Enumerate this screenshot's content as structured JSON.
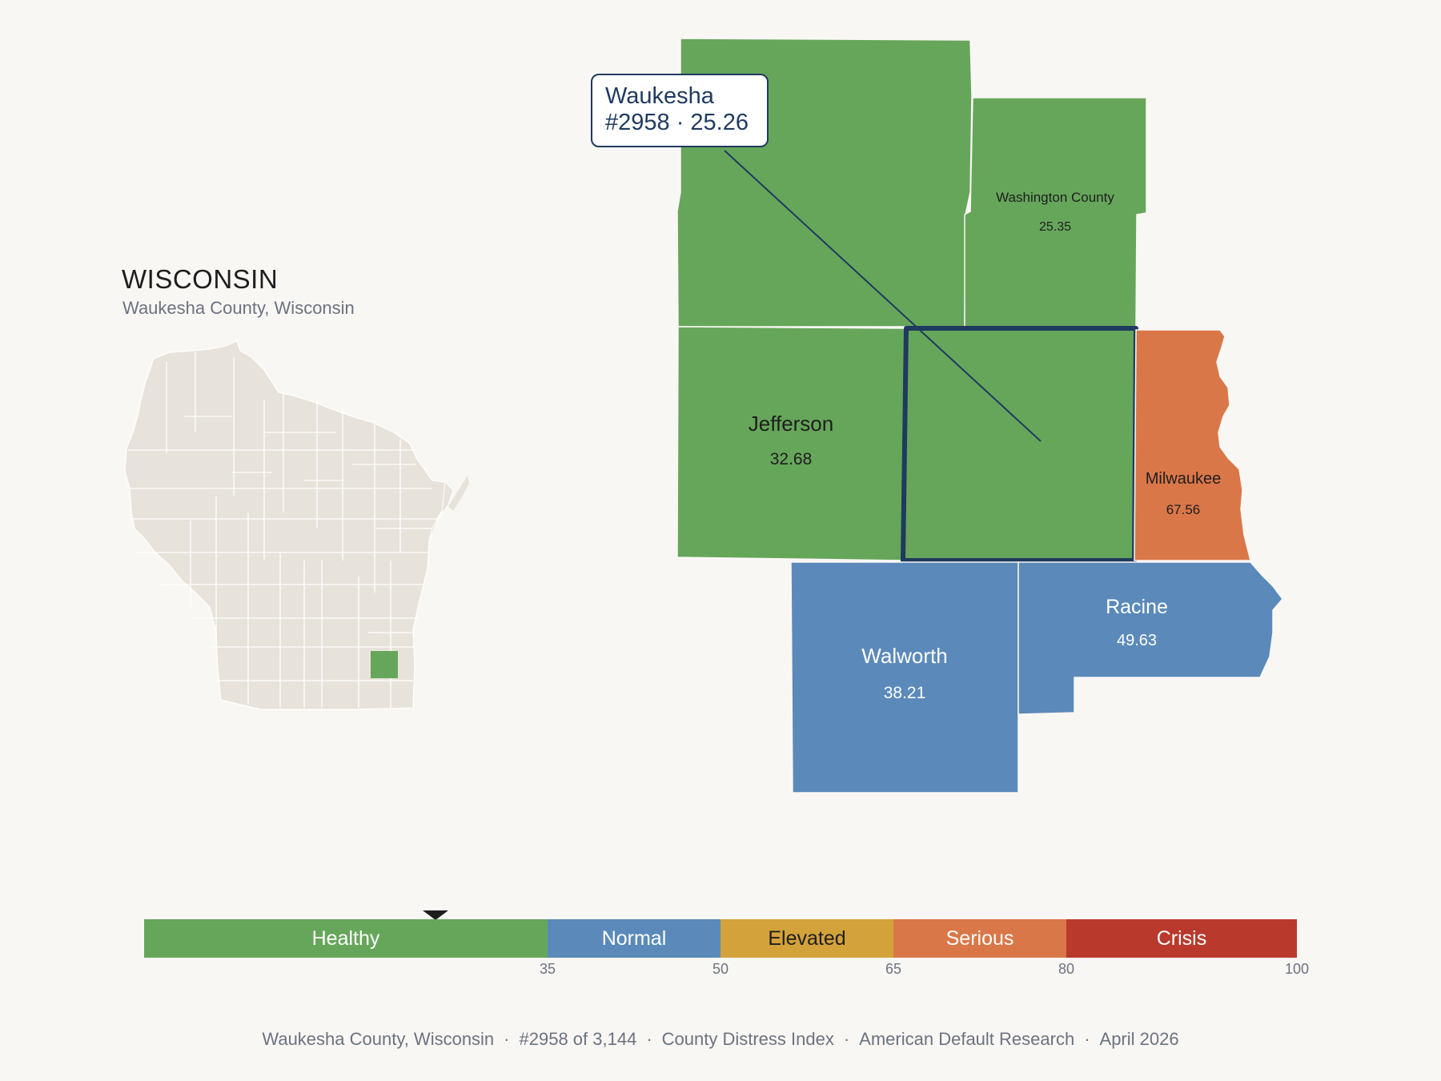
{
  "inset": {
    "title": "WISCONSIN",
    "subtitle": "Waukesha County, Wisconsin"
  },
  "colors": {
    "healthy": "#66a65a",
    "normal": "#5b8aba",
    "elevated": "#d4a23a",
    "serious": "#da7748",
    "crisis": "#b93a2c",
    "state_fill": "#e8e3da",
    "highlight_border": "#1f3a5f"
  },
  "counties": {
    "washington": {
      "name": "Washington County",
      "value": "25.35",
      "category": "healthy"
    },
    "jefferson": {
      "name": "Jefferson",
      "value": "32.68",
      "category": "healthy"
    },
    "milwaukee": {
      "name": "Milwaukee",
      "value": "67.56",
      "category": "serious"
    },
    "racine": {
      "name": "Racine",
      "value": "49.63",
      "category": "normal"
    },
    "walworth": {
      "name": "Walworth",
      "value": "38.21",
      "category": "normal"
    }
  },
  "focus": {
    "name": "Waukesha",
    "detail": "#2958 · 25.26",
    "category": "healthy"
  },
  "legend": {
    "segments": [
      {
        "label": "Healthy",
        "from": 0,
        "to": 35,
        "color": "#66a65a",
        "text_color": "#ffffff"
      },
      {
        "label": "Normal",
        "from": 35,
        "to": 50,
        "color": "#5b8aba",
        "text_color": "#ffffff"
      },
      {
        "label": "Elevated",
        "from": 50,
        "to": 65,
        "color": "#d4a23a",
        "text_color": "#1e1e1e"
      },
      {
        "label": "Serious",
        "from": 65,
        "to": 80,
        "color": "#da7748",
        "text_color": "#ffffff"
      },
      {
        "label": "Crisis",
        "from": 80,
        "to": 100,
        "color": "#b93a2c",
        "text_color": "#ffffff"
      }
    ],
    "ticks": [
      "35",
      "50",
      "65",
      "80",
      "100"
    ],
    "marker_value": 25.26
  },
  "footer": {
    "location": "Waukesha County, Wisconsin",
    "rank": "#2958 of 3,144",
    "index": "County Distress Index",
    "source": "American Default Research",
    "date": "April 2026",
    "separator": "·"
  }
}
